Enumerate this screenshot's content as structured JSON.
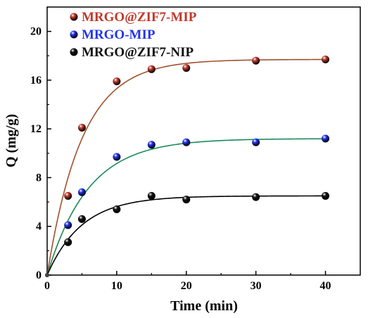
{
  "chart_data": {
    "type": "scatter",
    "title": "",
    "xlabel": "Time (min)",
    "ylabel": "Q (mg/g)",
    "xlim": [
      0,
      45
    ],
    "ylim": [
      0,
      22
    ],
    "xticks": [
      0,
      10,
      20,
      30,
      40
    ],
    "yticks": [
      0,
      4,
      8,
      12,
      16,
      20
    ],
    "grid": false,
    "legend_position": "top-left",
    "series": [
      {
        "name": "MRGO@ZIF7-MIP",
        "color": "#c0392b",
        "line_color": "#a0522d",
        "x": [
          0,
          3,
          5,
          10,
          15,
          20,
          30,
          40
        ],
        "y": [
          0,
          6.5,
          12.1,
          15.9,
          16.9,
          17.0,
          17.6,
          17.7
        ],
        "fit": {
          "qe": 17.7,
          "k": 0.2
        }
      },
      {
        "name": "MRGO-MIP",
        "color": "#2233ee",
        "line_color": "#1a8a5a",
        "x": [
          0,
          3,
          5,
          10,
          15,
          20,
          30,
          40
        ],
        "y": [
          0,
          4.1,
          6.8,
          9.7,
          10.7,
          10.9,
          10.9,
          11.2
        ],
        "fit": {
          "qe": 11.2,
          "k": 0.17
        }
      },
      {
        "name": "MRGO@ZIF7-NIP",
        "color": "#111111",
        "line_color": "#000000",
        "x": [
          0,
          3,
          5,
          10,
          15,
          20,
          30,
          40
        ],
        "y": [
          0,
          2.7,
          4.6,
          5.4,
          6.5,
          6.2,
          6.4,
          6.5
        ],
        "fit": {
          "qe": 6.5,
          "k": 0.2
        }
      }
    ]
  }
}
